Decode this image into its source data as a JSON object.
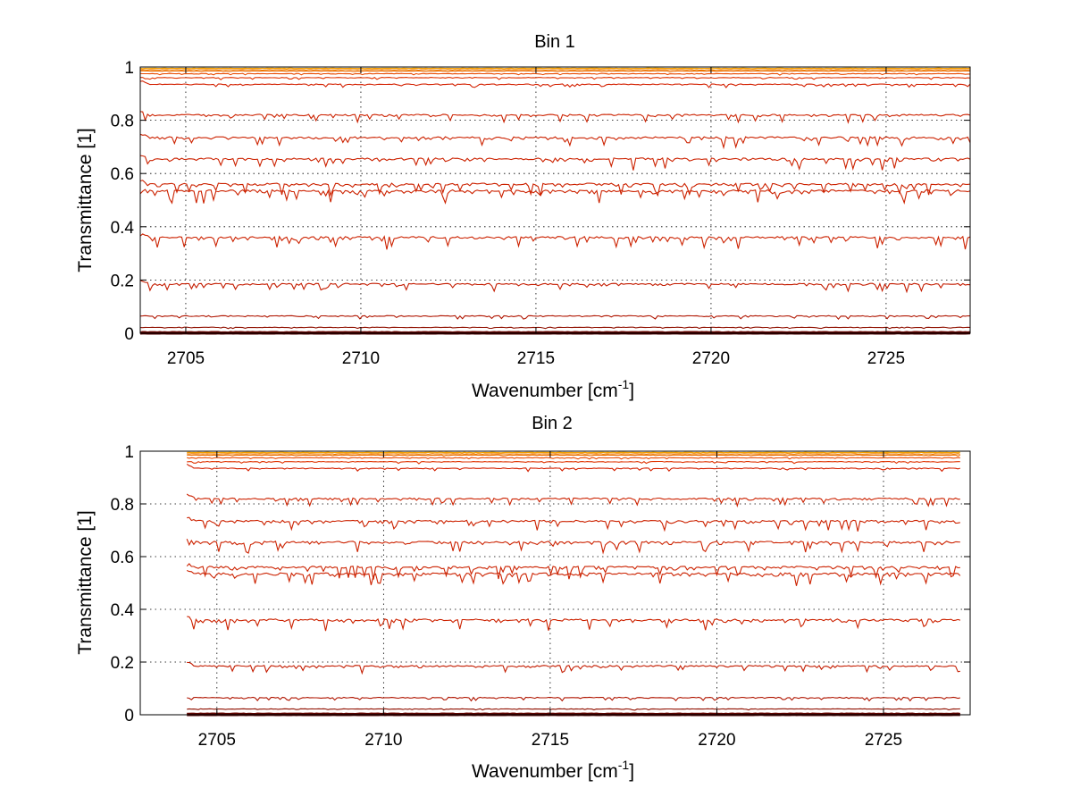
{
  "chart_data": [
    {
      "type": "line",
      "title": "Bin 1",
      "xlabel": "Wavenumber [cm",
      "xlabel_sup": "-1",
      "xlabel_end": "]",
      "ylabel": "Transmittance [1]",
      "xlim": [
        2703.7,
        2727.4
      ],
      "ylim": [
        0,
        1
      ],
      "xticks": [
        2705,
        2710,
        2715,
        2720,
        2725
      ],
      "xtick_labels": [
        "2705",
        "2710",
        "2715",
        "2720",
        "2725"
      ],
      "yticks": [
        0,
        0.2,
        0.4,
        0.6,
        0.8,
        1
      ],
      "ytick_labels": [
        "0",
        "0.2",
        "0.4",
        "0.6",
        "0.8",
        "1"
      ],
      "grid": true,
      "x_start": 2703.7,
      "x_end": 2727.4,
      "levels": [
        1.0,
        0.995,
        0.99,
        0.985,
        0.975,
        0.96,
        0.935,
        0.82,
        0.735,
        0.655,
        0.56,
        0.535,
        0.36,
        0.185,
        0.065,
        0.022,
        0.006,
        0.0
      ],
      "series_colors": [
        "#f2c500",
        "#f5a000",
        "#f08000",
        "#ea6a00",
        "#e84a00",
        "#e03300",
        "#d42000",
        "#cc2200",
        "#cc2200",
        "#cc2200",
        "#cc2200",
        "#cc2200",
        "#cc2200",
        "#c41c00",
        "#b01500",
        "#901000",
        "#700800",
        "#500000"
      ]
    },
    {
      "type": "line",
      "title": "Bin 2",
      "xlabel": "Wavenumber [cm",
      "xlabel_sup": "-1",
      "xlabel_end": "]",
      "ylabel": "Transmittance [1]",
      "xlim": [
        2702.7,
        2727.6
      ],
      "ylim": [
        0,
        1
      ],
      "xticks": [
        2705,
        2710,
        2715,
        2720,
        2725
      ],
      "xtick_labels": [
        "2705",
        "2710",
        "2715",
        "2720",
        "2725"
      ],
      "yticks": [
        0,
        0.2,
        0.4,
        0.6,
        0.8,
        1
      ],
      "ytick_labels": [
        "0",
        "0.2",
        "0.4",
        "0.6",
        "0.8",
        "1"
      ],
      "grid": true,
      "x_start": 2704.1,
      "x_end": 2727.3,
      "levels": [
        1.0,
        0.995,
        0.99,
        0.985,
        0.975,
        0.96,
        0.935,
        0.82,
        0.735,
        0.655,
        0.56,
        0.535,
        0.36,
        0.185,
        0.065,
        0.022,
        0.006,
        0.0
      ],
      "series_colors": [
        "#f2c500",
        "#f5a000",
        "#f08000",
        "#ea6a00",
        "#e84a00",
        "#e03300",
        "#d42000",
        "#cc2200",
        "#cc2200",
        "#cc2200",
        "#cc2200",
        "#cc2200",
        "#cc2200",
        "#c41c00",
        "#b01500",
        "#901000",
        "#700800",
        "#500000"
      ]
    }
  ]
}
